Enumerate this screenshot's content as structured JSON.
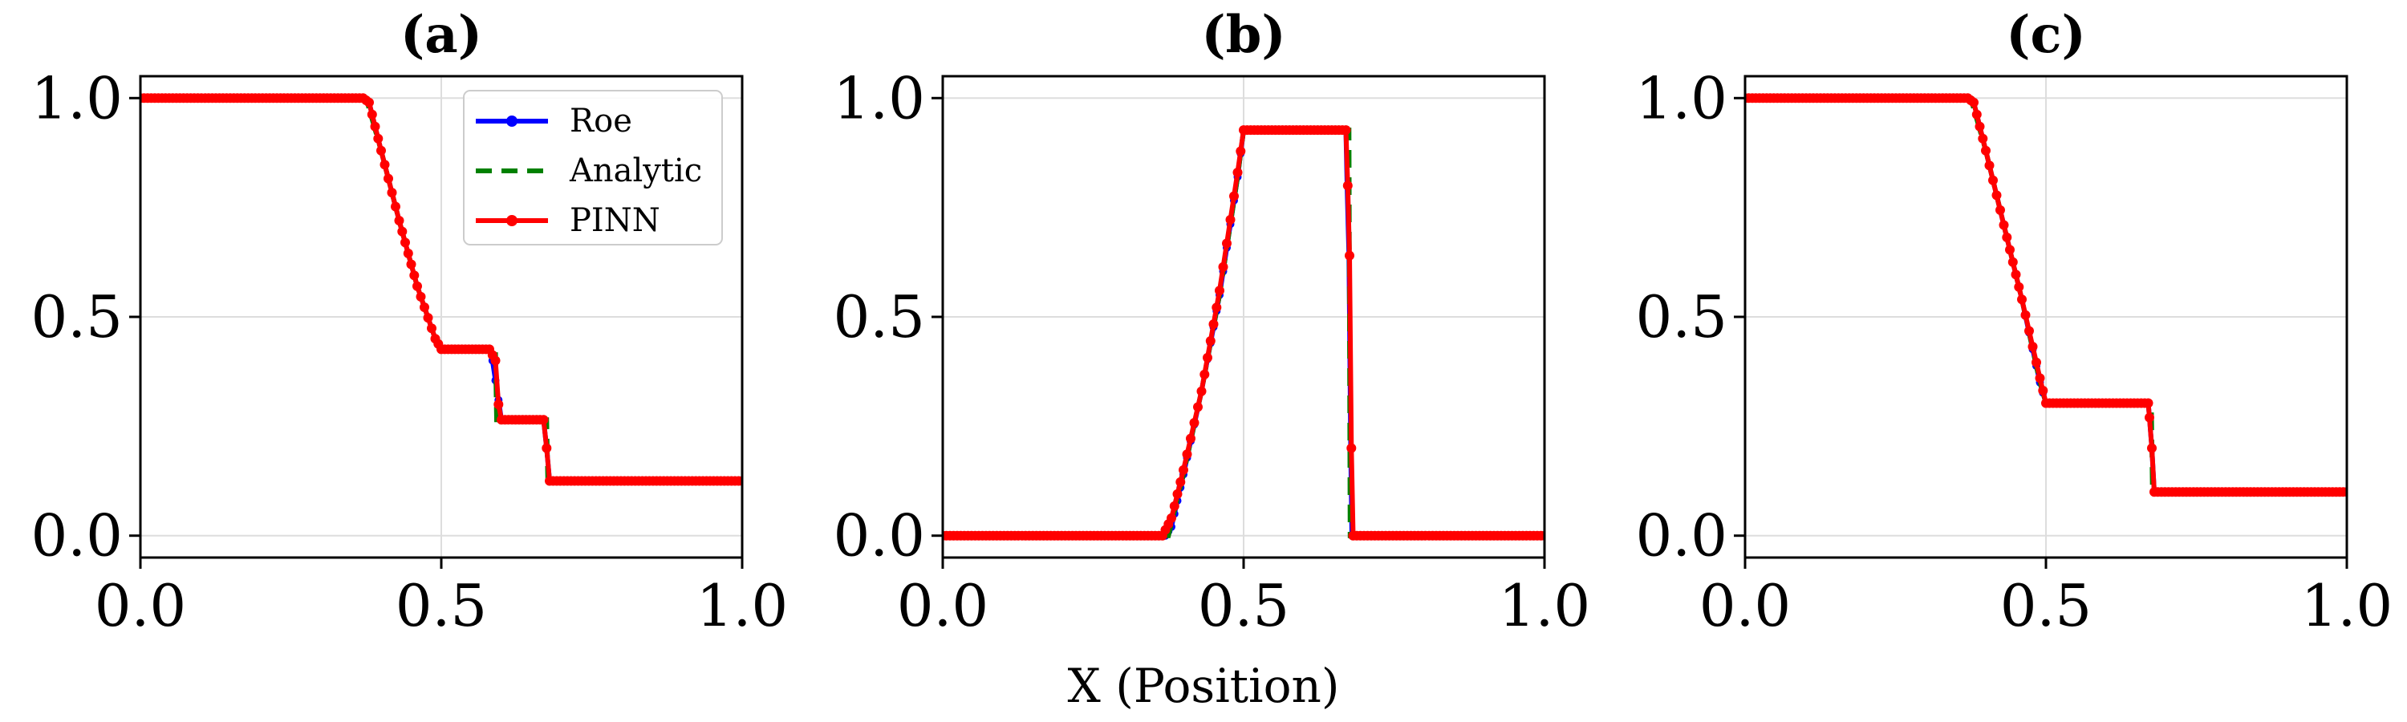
{
  "figure": {
    "xlabel": "X (Position)"
  },
  "colors": {
    "roe": "#0000ff",
    "analytic": "#008000",
    "pinn": "#ff0000",
    "grid": "#dddddd",
    "axes": "#000000"
  },
  "chart_data": [
    {
      "type": "line",
      "title": "(a)",
      "xlabel": "",
      "ylabel": "",
      "xlim": [
        0,
        1
      ],
      "ylim": [
        -0.05,
        1.05
      ],
      "xticks": [
        "0.0",
        "0.5",
        "1.0"
      ],
      "yticks": [
        "0.0",
        "0.5",
        "1.0"
      ],
      "grid": true,
      "legend": {
        "position": "top-right",
        "entries": [
          "Roe",
          "Analytic",
          "PINN"
        ]
      },
      "series": [
        {
          "name": "Roe",
          "style": "solid-dots",
          "x": [
            0,
            0.37,
            0.38,
            0.4,
            0.43,
            0.46,
            0.49,
            0.5,
            0.58,
            0.585,
            0.6,
            0.605,
            0.67,
            0.675,
            0.68,
            1.0
          ],
          "y": [
            1.0,
            1.0,
            0.99,
            0.88,
            0.72,
            0.57,
            0.45,
            0.426,
            0.426,
            0.4,
            0.265,
            0.265,
            0.265,
            0.2,
            0.125,
            0.125
          ]
        },
        {
          "name": "Analytic",
          "style": "dashed",
          "x": [
            0,
            0.375,
            0.4,
            0.43,
            0.46,
            0.49,
            0.5,
            0.59,
            0.592,
            0.675,
            0.677,
            1.0
          ],
          "y": [
            1.0,
            1.0,
            0.88,
            0.72,
            0.57,
            0.45,
            0.426,
            0.426,
            0.265,
            0.265,
            0.125,
            0.125
          ]
        },
        {
          "name": "PINN",
          "style": "solid-dots",
          "x": [
            0,
            0.37,
            0.38,
            0.4,
            0.43,
            0.46,
            0.49,
            0.5,
            0.58,
            0.59,
            0.595,
            0.6,
            0.67,
            0.675,
            0.68,
            1.0
          ],
          "y": [
            1.0,
            1.0,
            0.99,
            0.88,
            0.72,
            0.57,
            0.45,
            0.426,
            0.426,
            0.4,
            0.3,
            0.265,
            0.265,
            0.2,
            0.125,
            0.125
          ]
        }
      ]
    },
    {
      "type": "line",
      "title": "(b)",
      "xlabel": "",
      "ylabel": "",
      "xlim": [
        0,
        1
      ],
      "ylim": [
        -0.05,
        1.05
      ],
      "xticks": [
        "0.0",
        "0.5",
        "1.0"
      ],
      "yticks": [
        "0.0",
        "0.5",
        "1.0"
      ],
      "grid": true,
      "series": [
        {
          "name": "Roe",
          "style": "solid-dots",
          "x": [
            0,
            0.37,
            0.38,
            0.4,
            0.43,
            0.46,
            0.49,
            0.5,
            0.67,
            0.672,
            0.675,
            0.678,
            0.68,
            1.0
          ],
          "y": [
            0,
            0,
            0.02,
            0.14,
            0.33,
            0.55,
            0.82,
            0.927,
            0.927,
            0.8,
            0.64,
            0.2,
            0.0,
            0.0
          ]
        },
        {
          "name": "Analytic",
          "style": "dashed",
          "x": [
            0,
            0.375,
            0.4,
            0.43,
            0.46,
            0.49,
            0.5,
            0.675,
            0.677,
            1.0
          ],
          "y": [
            0,
            0,
            0.14,
            0.33,
            0.55,
            0.82,
            0.927,
            0.927,
            0.0,
            0.0
          ]
        },
        {
          "name": "PINN",
          "style": "solid-dots",
          "x": [
            0,
            0.365,
            0.38,
            0.4,
            0.43,
            0.46,
            0.49,
            0.5,
            0.67,
            0.673,
            0.676,
            0.679,
            0.682,
            1.0
          ],
          "y": [
            0,
            0,
            0.04,
            0.15,
            0.33,
            0.56,
            0.83,
            0.927,
            0.927,
            0.8,
            0.64,
            0.2,
            0.0,
            0.0
          ]
        }
      ]
    },
    {
      "type": "line",
      "title": "(c)",
      "xlabel": "",
      "ylabel": "",
      "xlim": [
        0,
        1
      ],
      "ylim": [
        -0.05,
        1.05
      ],
      "xticks": [
        "0.0",
        "0.5",
        "1.0"
      ],
      "yticks": [
        "0.0",
        "0.5",
        "1.0"
      ],
      "grid": true,
      "series": [
        {
          "name": "Roe",
          "style": "solid-dots",
          "x": [
            0,
            0.37,
            0.38,
            0.4,
            0.43,
            0.46,
            0.49,
            0.5,
            0.67,
            0.672,
            0.676,
            0.68,
            1.0
          ],
          "y": [
            1.0,
            1.0,
            0.99,
            0.88,
            0.71,
            0.54,
            0.35,
            0.303,
            0.303,
            0.27,
            0.2,
            0.1,
            0.1
          ]
        },
        {
          "name": "Analytic",
          "style": "dashed",
          "x": [
            0,
            0.375,
            0.4,
            0.43,
            0.46,
            0.49,
            0.5,
            0.675,
            0.677,
            1.0
          ],
          "y": [
            1.0,
            1.0,
            0.88,
            0.71,
            0.54,
            0.35,
            0.303,
            0.303,
            0.1,
            0.1
          ]
        },
        {
          "name": "PINN",
          "style": "solid-dots",
          "x": [
            0,
            0.37,
            0.38,
            0.4,
            0.43,
            0.46,
            0.49,
            0.5,
            0.67,
            0.672,
            0.676,
            0.68,
            1.0
          ],
          "y": [
            1.0,
            1.0,
            0.99,
            0.88,
            0.71,
            0.54,
            0.36,
            0.303,
            0.303,
            0.27,
            0.2,
            0.1,
            0.1
          ]
        }
      ]
    }
  ]
}
